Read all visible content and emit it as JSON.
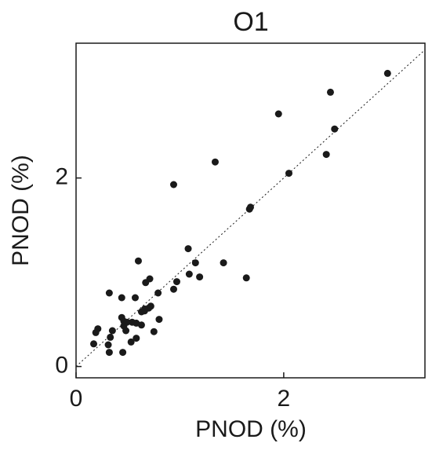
{
  "chart_data": {
    "type": "scatter",
    "title": "O1",
    "x_label": "PNOD (%)",
    "y_label": "PNOD (%)",
    "xlim": [
      0,
      3.36
    ],
    "ylim": [
      -0.12,
      3.43
    ],
    "xticks": [
      0,
      2
    ],
    "yticks": [
      0,
      2
    ],
    "color": "#1a1a1a",
    "identity_line": true,
    "x": [
      3.0,
      2.45,
      1.95,
      2.49,
      2.41,
      2.05,
      1.34,
      0.94,
      1.68,
      1.67,
      1.08,
      0.6,
      1.15,
      1.42,
      1.64,
      1.09,
      1.19,
      0.71,
      0.67,
      0.97,
      0.94,
      0.32,
      0.79,
      0.44,
      0.57,
      0.72,
      0.7,
      0.66,
      0.63,
      0.66,
      0.8,
      0.44,
      0.46,
      0.49,
      0.54,
      0.58,
      0.63,
      0.46,
      0.21,
      0.35,
      0.19,
      0.48,
      0.75,
      0.33,
      0.58,
      0.53,
      0.17,
      0.31,
      0.32,
      0.45
    ],
    "values": [
      3.11,
      2.91,
      2.68,
      2.52,
      2.25,
      2.05,
      2.17,
      1.93,
      1.69,
      1.67,
      1.25,
      1.12,
      1.1,
      1.1,
      0.94,
      0.98,
      0.95,
      0.93,
      0.89,
      0.9,
      0.82,
      0.78,
      0.78,
      0.73,
      0.73,
      0.64,
      0.62,
      0.59,
      0.58,
      0.61,
      0.5,
      0.52,
      0.48,
      0.47,
      0.47,
      0.46,
      0.44,
      0.43,
      0.4,
      0.38,
      0.36,
      0.38,
      0.37,
      0.31,
      0.3,
      0.26,
      0.24,
      0.23,
      0.15,
      0.15
    ]
  }
}
